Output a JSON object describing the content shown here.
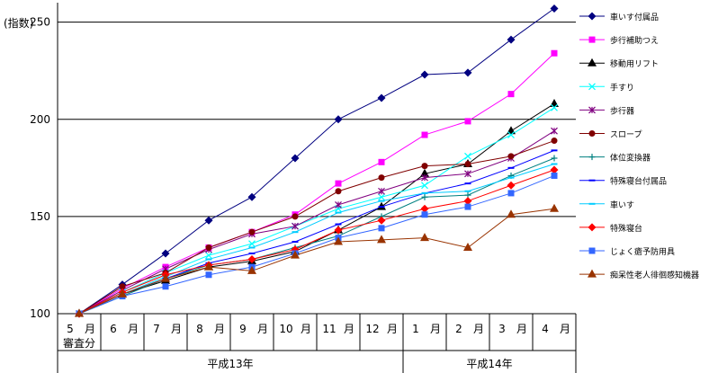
{
  "chart_data": {
    "type": "line",
    "ylabel": "(指数)",
    "ylim": [
      100,
      260
    ],
    "yticks": [
      100,
      150,
      200,
      250
    ],
    "grid": "horizontal at 150, 200, 250",
    "legend_position": "right",
    "categories": [
      {
        "month": "5",
        "unit": "月",
        "sub": "審査分"
      },
      {
        "month": "6",
        "unit": "月",
        "sub": ""
      },
      {
        "month": "7",
        "unit": "月",
        "sub": ""
      },
      {
        "month": "8",
        "unit": "月",
        "sub": ""
      },
      {
        "month": "9",
        "unit": "月",
        "sub": ""
      },
      {
        "month": "10",
        "unit": "月",
        "sub": ""
      },
      {
        "month": "11",
        "unit": "月",
        "sub": ""
      },
      {
        "month": "12",
        "unit": "月",
        "sub": ""
      },
      {
        "month": "1",
        "unit": "月",
        "sub": ""
      },
      {
        "month": "2",
        "unit": "月",
        "sub": ""
      },
      {
        "month": "3",
        "unit": "月",
        "sub": ""
      },
      {
        "month": "4",
        "unit": "月",
        "sub": ""
      }
    ],
    "year_groups": [
      {
        "label": "平成13年",
        "from": 0,
        "to": 7
      },
      {
        "label": "平成14年",
        "from": 8,
        "to": 11
      }
    ],
    "series": [
      {
        "name": "車いす付属品",
        "color": "#000080",
        "marker": "diamond",
        "values": [
          100,
          115,
          131,
          148,
          160,
          180,
          200,
          211,
          223,
          224,
          241,
          257
        ]
      },
      {
        "name": "歩行補助つえ",
        "color": "#ff00ff",
        "marker": "square",
        "values": [
          100,
          113,
          124,
          134,
          142,
          151,
          167,
          178,
          192,
          199,
          213,
          234
        ]
      },
      {
        "name": "移動用リフト",
        "color": "#000000",
        "marker": "triangle",
        "values": [
          100,
          110,
          117,
          124,
          127,
          132,
          143,
          155,
          172,
          177,
          194,
          208
        ]
      },
      {
        "name": "手すり",
        "color": "#00ffff",
        "marker": "x",
        "values": [
          100,
          111,
          121,
          130,
          136,
          145,
          154,
          160,
          166,
          181,
          192,
          206
        ]
      },
      {
        "name": "歩行器",
        "color": "#800080",
        "marker": "star",
        "values": [
          100,
          112,
          123,
          133,
          141,
          145,
          156,
          163,
          170,
          172,
          180,
          194
        ]
      },
      {
        "name": "スロープ",
        "color": "#800000",
        "marker": "circle",
        "values": [
          100,
          114,
          121,
          134,
          142,
          150,
          163,
          170,
          176,
          177,
          181,
          189
        ]
      },
      {
        "name": "体位変換器",
        "color": "#008080",
        "marker": "plus",
        "values": [
          100,
          109,
          118,
          125,
          128,
          134,
          140,
          150,
          160,
          161,
          171,
          180
        ]
      },
      {
        "name": "特殊寝台付属品",
        "color": "#0000ff",
        "marker": "dash",
        "values": [
          100,
          110,
          118,
          126,
          131,
          137,
          146,
          155,
          162,
          167,
          175,
          184
        ]
      },
      {
        "name": "車いす",
        "color": "#00ccff",
        "marker": "dash",
        "values": [
          100,
          110,
          119,
          128,
          134,
          142,
          152,
          158,
          162,
          163,
          170,
          177
        ]
      },
      {
        "name": "特殊寝台",
        "color": "#ff0000",
        "marker": "diamond",
        "values": [
          100,
          111,
          120,
          125,
          128,
          133,
          143,
          148,
          154,
          158,
          166,
          174
        ]
      },
      {
        "name": "じょく瘡予防用具",
        "color": "#3366ff",
        "marker": "square",
        "values": [
          100,
          109,
          114,
          120,
          124,
          131,
          139,
          144,
          151,
          155,
          162,
          171
        ]
      },
      {
        "name": "痴呆性老人徘徊感知機器",
        "color": "#993300",
        "marker": "triangle",
        "values": [
          100,
          110,
          118,
          124,
          122,
          130,
          137,
          138,
          139,
          134,
          151,
          154
        ]
      }
    ]
  }
}
